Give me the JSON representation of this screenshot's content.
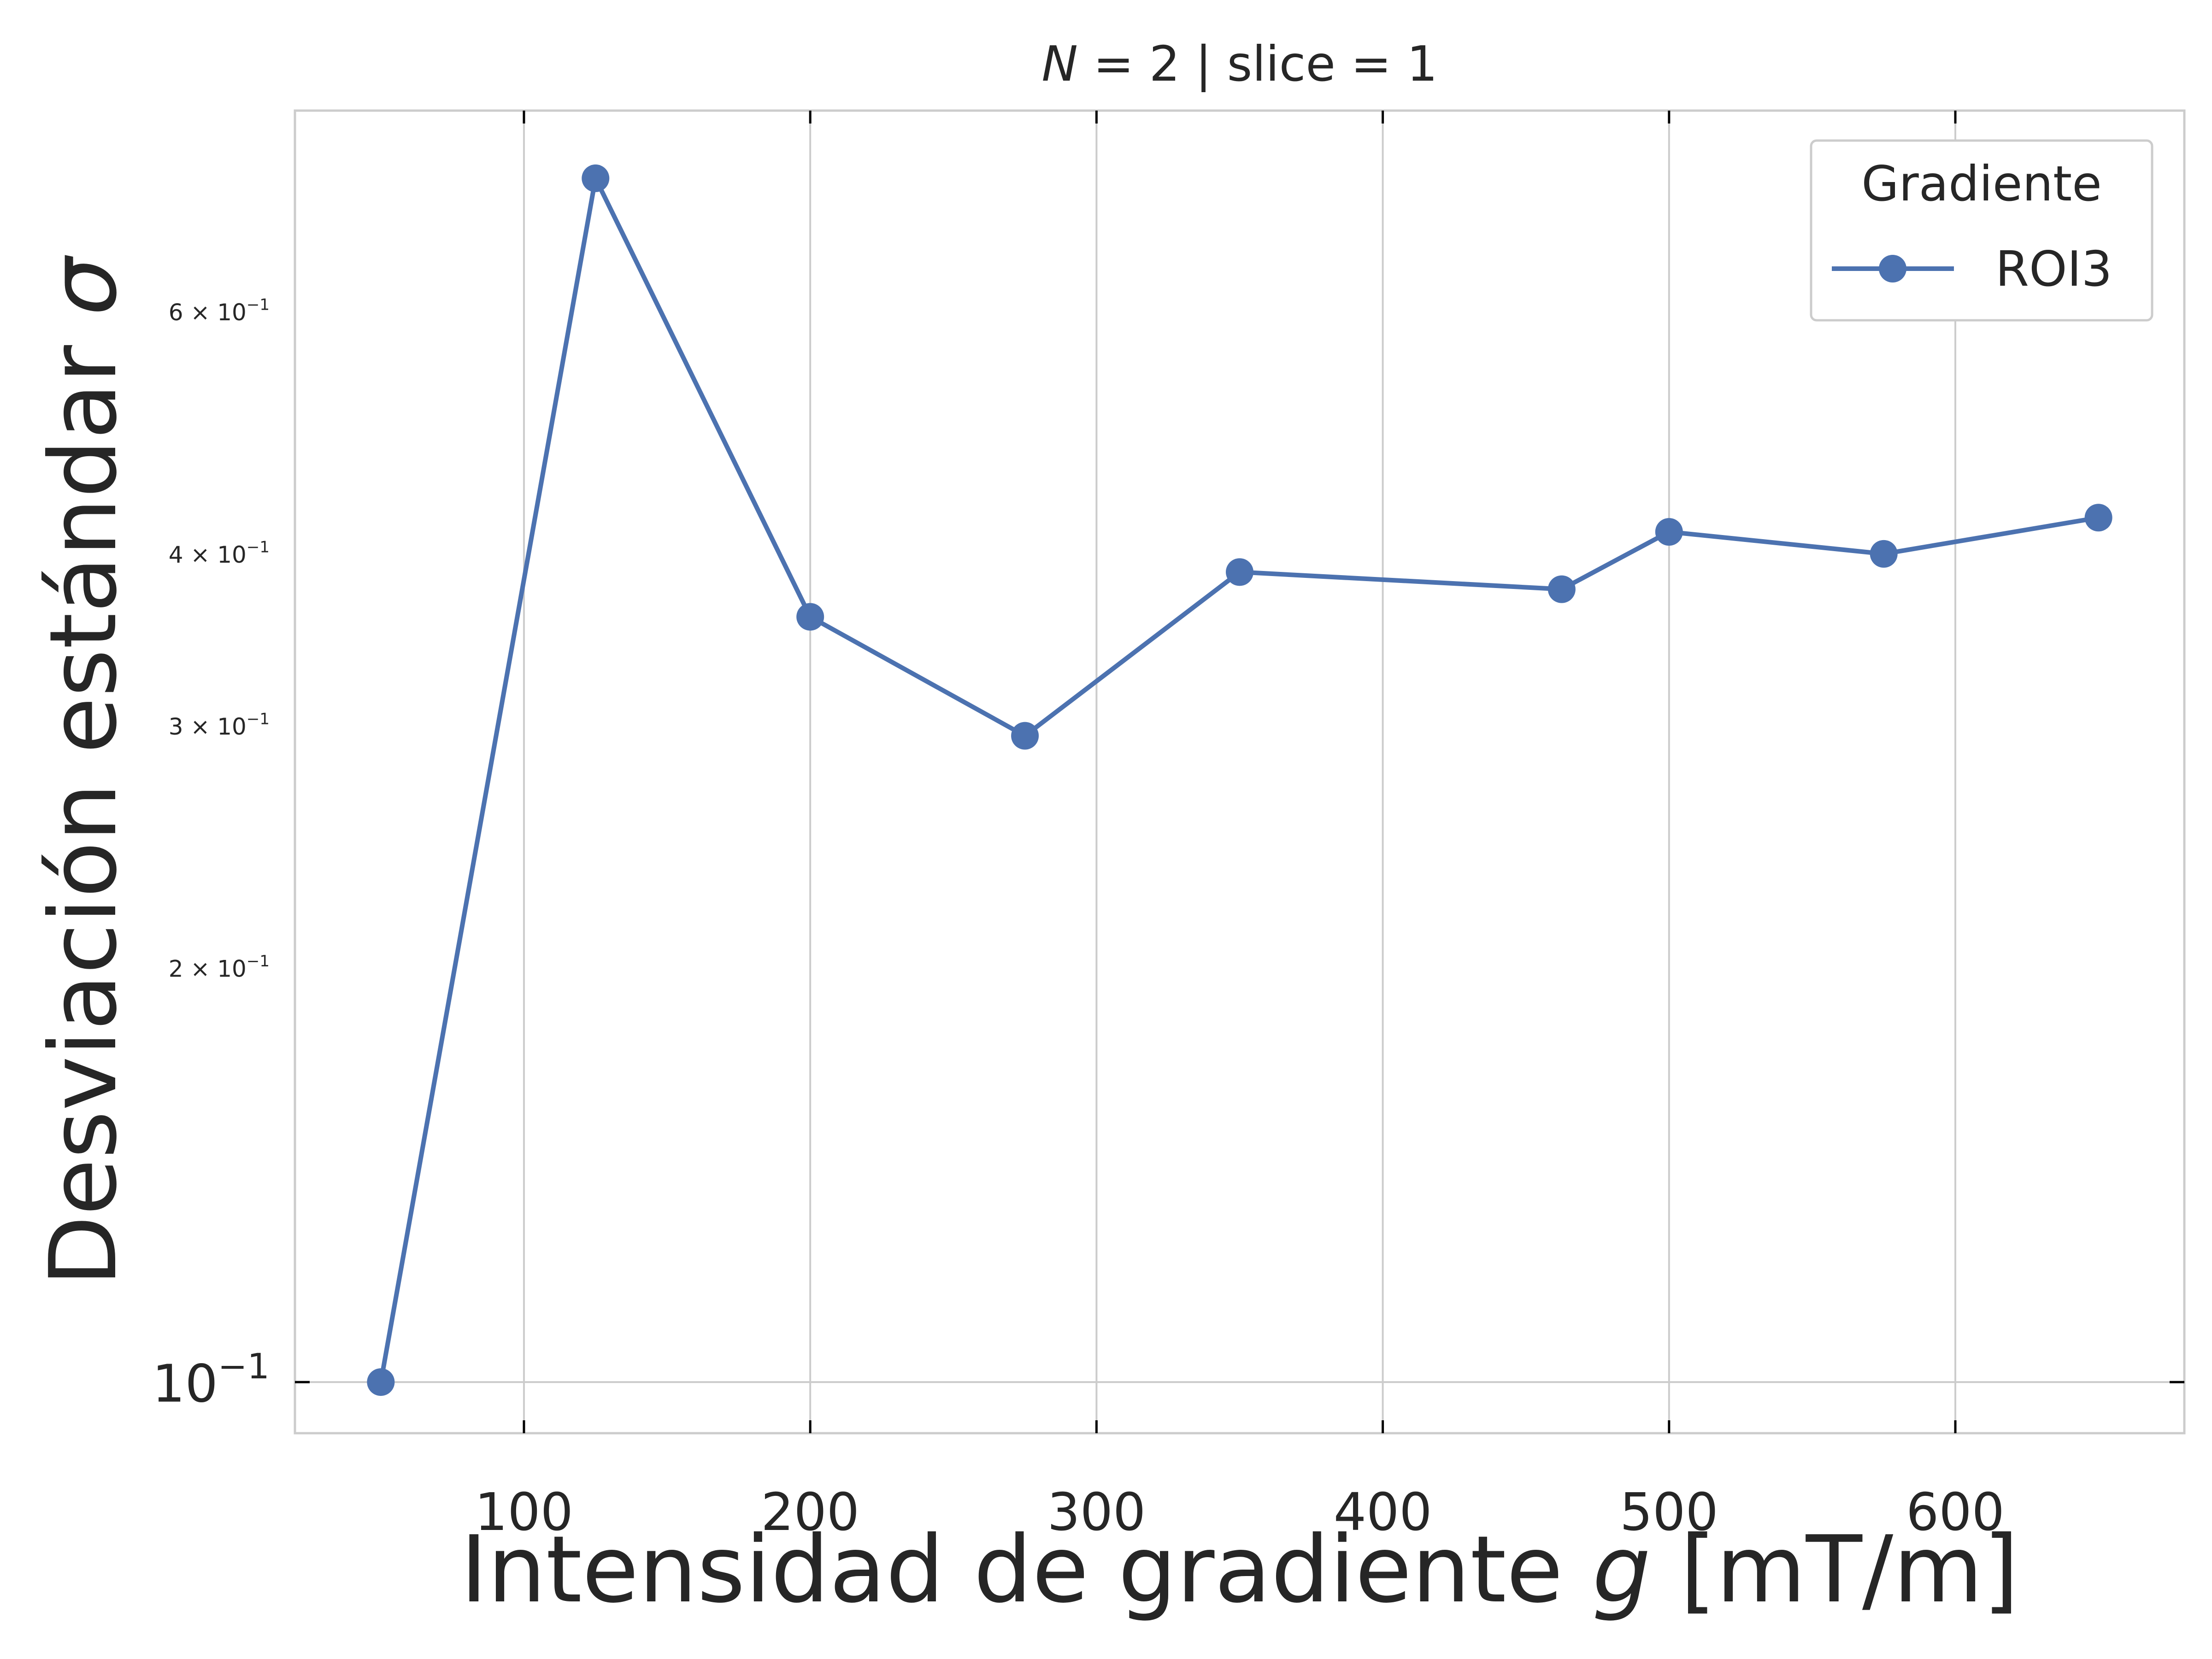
{
  "chart_data": {
    "type": "line",
    "title": "N = 2 | slice = 1",
    "title_parts": {
      "var": "N",
      "rest": " = 2 | slice = 1"
    },
    "xlabel": "Intensidad de gradiente g [mT/m]",
    "xlabel_parts": {
      "pre": "Intensidad de gradiente ",
      "var": "g",
      "post": " [mT/m]"
    },
    "ylabel": "Desviación estándar σ",
    "ylabel_parts": {
      "pre": "Desviación estándar ",
      "var": "σ"
    },
    "x_scale": "linear",
    "y_scale": "log",
    "xlim": [
      20,
      680
    ],
    "ylim": [
      0.0918,
      0.84
    ],
    "x_ticks": [
      {
        "value": 100,
        "label": "100"
      },
      {
        "value": 200,
        "label": "200"
      },
      {
        "value": 300,
        "label": "300"
      },
      {
        "value": 400,
        "label": "400"
      },
      {
        "value": 500,
        "label": "500"
      },
      {
        "value": 600,
        "label": "600"
      }
    ],
    "y_major_ticks": [
      {
        "value": 0.1,
        "mantissa": "",
        "base": "10",
        "exp": "−1"
      }
    ],
    "y_minor_ticks": [
      {
        "value": 0.2,
        "mantissa": "2 × ",
        "base": "10",
        "exp": "−1"
      },
      {
        "value": 0.3,
        "mantissa": "3 × ",
        "base": "10",
        "exp": "−1"
      },
      {
        "value": 0.4,
        "mantissa": "4 × ",
        "base": "10",
        "exp": "−1"
      },
      {
        "value": 0.6,
        "mantissa": "6 × ",
        "base": "10",
        "exp": "−1"
      }
    ],
    "grid": true,
    "legend": {
      "title": "Gradiente",
      "placement": "top-right"
    },
    "series": [
      {
        "name": "ROI3",
        "color": "#4c72b0",
        "marker": "circle",
        "x": [
          50,
          125,
          200,
          275,
          350,
          462.5,
          500,
          575,
          650
        ],
        "y": [
          0.1,
          0.75,
          0.36,
          0.295,
          0.388,
          0.377,
          0.415,
          0.4,
          0.425
        ]
      }
    ]
  },
  "colors": {
    "line": "#4c72b0",
    "grid": "#cccccc",
    "spine": "#cccccc",
    "text": "#262626"
  }
}
